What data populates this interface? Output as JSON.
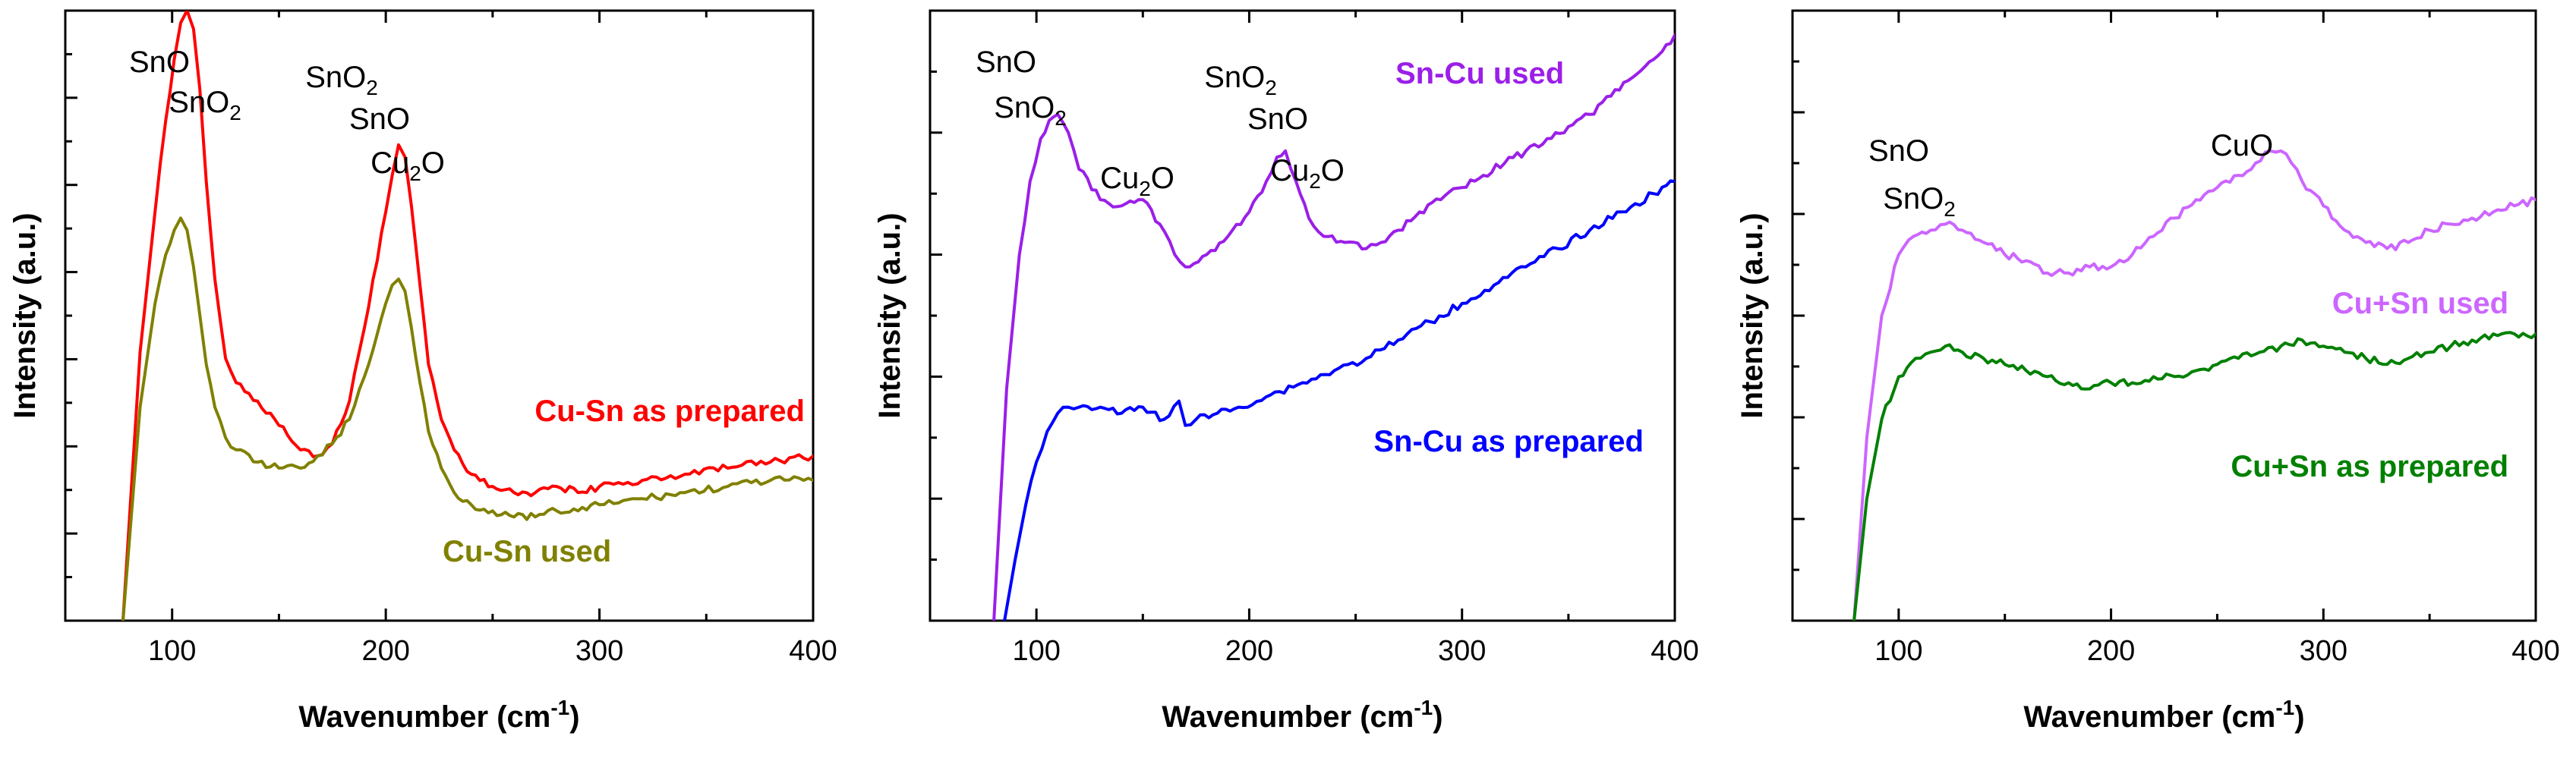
{
  "chart_data": [
    {
      "type": "line",
      "xlabel": "Wavenumber (cm-1)",
      "xlabel_main": "Wavenumber (cm",
      "xlabel_sup": "-1",
      "xlabel_close": ")",
      "ylabel": "Intensity (a.u.)",
      "xlim": [
        50,
        400
      ],
      "ylim": [
        0,
        100
      ],
      "xticks": [
        100,
        200,
        300,
        400
      ],
      "yticks_count": 6,
      "series": [
        {
          "name": "Cu-Sn as prepared",
          "color": "#ff0000",
          "x": [
            77,
            85,
            92,
            97,
            101,
            104,
            107,
            110,
            113,
            116,
            120,
            125,
            130,
            140,
            150,
            160,
            168,
            175,
            183,
            190,
            196,
            200,
            203,
            206,
            209,
            212,
            216,
            220,
            226,
            232,
            240,
            250,
            260,
            270,
            280,
            290,
            300,
            320,
            340,
            360,
            380,
            400
          ],
          "y": [
            0,
            44,
            67,
            82,
            92,
            98,
            100,
            97,
            87,
            72,
            56,
            43,
            39,
            36,
            32,
            28,
            27,
            29,
            36,
            48,
            59,
            67,
            73,
            78,
            76,
            68,
            55,
            42,
            33,
            28,
            24,
            22,
            21,
            21,
            22,
            21,
            22,
            23,
            24,
            25,
            26,
            27
          ]
        },
        {
          "name": "Cu-Sn used",
          "color": "#808000",
          "x": [
            77,
            85,
            92,
            97,
            101,
            104,
            107,
            110,
            113,
            116,
            120,
            125,
            130,
            140,
            150,
            160,
            168,
            175,
            183,
            190,
            196,
            200,
            203,
            206,
            209,
            212,
            216,
            220,
            226,
            232,
            240,
            250,
            260,
            270,
            280,
            290,
            300,
            320,
            340,
            360,
            380,
            400
          ],
          "y": [
            0,
            35,
            52,
            60,
            64,
            66,
            64,
            58,
            50,
            42,
            35,
            30,
            28,
            26,
            25,
            25,
            27,
            29,
            33,
            40,
            47,
            52,
            55,
            56,
            54,
            48,
            39,
            31,
            25,
            21,
            19,
            18,
            17,
            17,
            18,
            18,
            19,
            20,
            21,
            22,
            23,
            23
          ]
        }
      ],
      "legend": [
        {
          "text": "Cu-Sn as prepared",
          "color": "#ff0000"
        },
        {
          "text": "Cu-Sn used",
          "color": "#808000"
        }
      ],
      "annotations": [
        {
          "main": "SnO",
          "sub": "",
          "tail": ""
        },
        {
          "main": "SnO",
          "sub": "2",
          "tail": ""
        },
        {
          "main": "SnO",
          "sub": "2",
          "tail": ""
        },
        {
          "main": "SnO",
          "sub": "",
          "tail": ""
        },
        {
          "main": "Cu",
          "sub": "2",
          "tail": "O"
        }
      ]
    },
    {
      "type": "line",
      "xlabel": "Wavenumber (cm-1)",
      "xlabel_main": "Wavenumber (cm",
      "xlabel_sup": "-1",
      "xlabel_close": ")",
      "ylabel": "Intensity (a.u.)",
      "xlim": [
        50,
        400
      ],
      "ylim": [
        0,
        100
      ],
      "xticks": [
        100,
        200,
        300,
        400
      ],
      "yticks_count": 4,
      "series": [
        {
          "name": "Sn-Cu used",
          "color": "#9b1fe8",
          "x": [
            80,
            86,
            92,
            97,
            102,
            106,
            110,
            115,
            120,
            130,
            140,
            150,
            158,
            165,
            170,
            180,
            190,
            200,
            208,
            213,
            217,
            222,
            228,
            235,
            245,
            255,
            262,
            270,
            280,
            290,
            300,
            310,
            320,
            330,
            340,
            350,
            360,
            370,
            380,
            390,
            400
          ],
          "y": [
            0,
            38,
            60,
            72,
            79,
            82,
            83,
            80,
            74,
            69,
            68,
            69,
            65,
            60,
            58,
            60,
            63,
            67,
            72,
            76,
            77,
            72,
            66,
            63,
            62,
            61,
            62,
            64,
            67,
            69,
            71,
            73,
            75,
            77,
            79,
            81,
            83,
            86,
            89,
            92,
            96
          ]
        },
        {
          "name": "Sn-Cu as prepared",
          "color": "#0000ff",
          "x": [
            85,
            90,
            95,
            100,
            105,
            110,
            115,
            120,
            130,
            140,
            150,
            160,
            167,
            170,
            175,
            185,
            195,
            210,
            225,
            240,
            255,
            270,
            285,
            300,
            315,
            330,
            345,
            360,
            375,
            390,
            400
          ],
          "y": [
            0,
            10,
            19,
            26,
            31,
            34,
            35,
            35,
            35,
            34,
            35,
            33,
            36,
            32,
            33,
            34,
            35,
            37,
            39,
            41,
            43,
            46,
            49,
            52,
            55,
            58,
            61,
            64,
            67,
            70,
            72
          ]
        }
      ],
      "legend": [
        {
          "text": "Sn-Cu used",
          "color": "#9b1fe8"
        },
        {
          "text": "Sn-Cu as prepared",
          "color": "#0000ff"
        }
      ],
      "annotations": [
        {
          "main": "SnO",
          "sub": "",
          "tail": ""
        },
        {
          "main": "SnO",
          "sub": "2",
          "tail": ""
        },
        {
          "main": "Cu",
          "sub": "2",
          "tail": "O"
        },
        {
          "main": "SnO",
          "sub": "2",
          "tail": ""
        },
        {
          "main": "SnO",
          "sub": "",
          "tail": ""
        },
        {
          "main": "Cu",
          "sub": "2",
          "tail": "O"
        }
      ]
    },
    {
      "type": "line",
      "xlabel": "Wavenumber (cm-1)",
      "xlabel_main": "Wavenumber (cm",
      "xlabel_sup": "-1",
      "xlabel_close": ")",
      "ylabel": "Intensity (a.u.)",
      "xlim": [
        50,
        400
      ],
      "ylim": [
        0,
        100
      ],
      "xticks": [
        100,
        200,
        300,
        400
      ],
      "yticks_count": 5,
      "series": [
        {
          "name": "Cu+Sn used",
          "color": "#cc66ff",
          "x": [
            79,
            85,
            92,
            100,
            107,
            115,
            122,
            130,
            140,
            150,
            160,
            170,
            180,
            190,
            200,
            210,
            220,
            230,
            240,
            250,
            260,
            268,
            275,
            280,
            285,
            290,
            300,
            310,
            320,
            330,
            340,
            350,
            360,
            370,
            380,
            390,
            400
          ],
          "y": [
            0,
            30,
            50,
            60,
            63,
            64,
            65,
            64,
            62,
            60,
            59,
            57,
            57,
            58,
            58,
            60,
            63,
            66,
            69,
            71,
            73,
            75,
            77,
            77,
            75,
            72,
            68,
            64,
            62,
            61,
            62,
            64,
            65,
            66,
            67,
            68,
            69
          ]
        },
        {
          "name": "Cu+Sn as prepared",
          "color": "#008000",
          "x": [
            79,
            85,
            92,
            100,
            108,
            115,
            122,
            130,
            140,
            150,
            160,
            170,
            180,
            190,
            200,
            210,
            220,
            230,
            240,
            250,
            260,
            270,
            280,
            290,
            300,
            310,
            320,
            330,
            340,
            350,
            360,
            370,
            380,
            390,
            400
          ],
          "y": [
            0,
            20,
            33,
            40,
            43,
            44,
            45,
            44,
            43,
            42,
            41,
            40,
            39,
            38,
            39,
            39,
            40,
            40,
            41,
            42,
            43,
            44,
            45,
            46,
            45,
            44,
            43,
            42,
            43,
            44,
            45,
            46,
            47,
            47,
            47
          ]
        }
      ],
      "legend": [
        {
          "text": "Cu+Sn used",
          "color": "#cc66ff"
        },
        {
          "text": "Cu+Sn as prepared",
          "color": "#008000"
        }
      ],
      "annotations": [
        {
          "main": "SnO",
          "sub": "",
          "tail": ""
        },
        {
          "main": "SnO",
          "sub": "2",
          "tail": ""
        },
        {
          "main": "CuO",
          "sub": "",
          "tail": ""
        }
      ]
    }
  ]
}
